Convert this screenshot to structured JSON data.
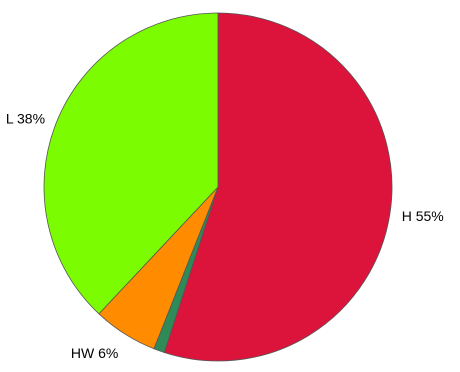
{
  "chart_data": {
    "type": "pie",
    "title": "",
    "start": "12 o'clock",
    "direction": "clockwise",
    "slices": [
      {
        "name": "H",
        "value": 55,
        "label": "H 55%",
        "color": "#dc143c"
      },
      {
        "name": "",
        "value": 1,
        "label": "",
        "color": "#2e8b57"
      },
      {
        "name": "HW",
        "value": 6,
        "label": "HW 6%",
        "color": "#ff8c00"
      },
      {
        "name": "L",
        "value": 38,
        "label": "L 38%",
        "color": "#7cfc00"
      }
    ]
  }
}
